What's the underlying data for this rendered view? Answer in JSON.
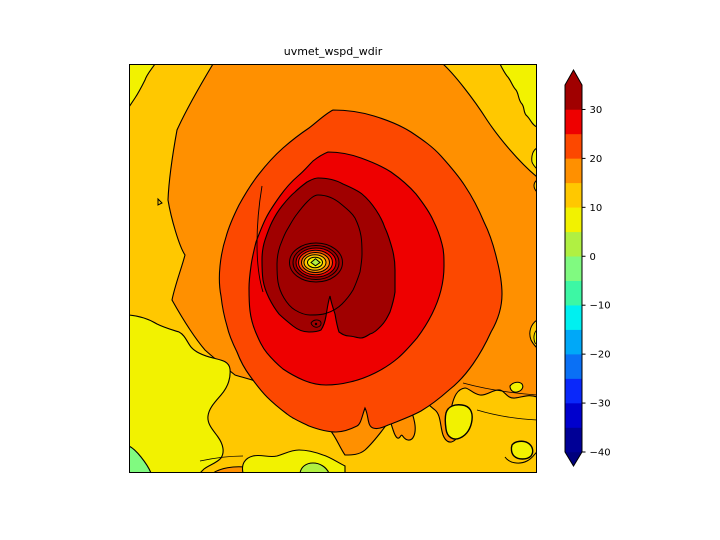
{
  "figure": {
    "title": "uvmet_wspd_wdir",
    "background_color": "#ffffff"
  },
  "chart_data": {
    "type": "filled_contour",
    "title": "uvmet_wspd_wdir",
    "description": "Filled contour map of wind speed (hurricane-like vortex): concentric maxima rings around a calm eye minimum near the center; black contour lines at every level.",
    "contour_interval": 5,
    "levels": [
      -40,
      -35,
      -30,
      -25,
      -20,
      -15,
      -10,
      -5,
      0,
      5,
      10,
      15,
      20,
      25,
      30,
      35
    ],
    "colorbar": {
      "orientation": "vertical",
      "extend": "both",
      "tick_values": [
        30,
        20,
        10,
        0,
        -10,
        -20,
        -30,
        -40
      ],
      "tick_labels": [
        "30",
        "20",
        "10",
        "0",
        "−10",
        "−20",
        "−30",
        "−40"
      ],
      "colors_low_to_high": [
        "#000096",
        "#0000cd",
        "#0a28fa",
        "#0a70f5",
        "#00a8f8",
        "#00f0f0",
        "#3df7a4",
        "#80fa80",
        "#b0f042",
        "#f2f200",
        "#ffc800",
        "#ff9000",
        "#fc4800",
        "#ee0000",
        "#a00000"
      ],
      "under_color": "#00007d",
      "over_color": "#a00000"
    },
    "map_colors": {
      "gold": "#ffc800",
      "orange": "#ff9000",
      "orange_red": "#fc4800",
      "red": "#ee0000",
      "dark_red": "#a00000",
      "yellow": "#f2f200",
      "green_yellow": "#b0f042",
      "light_green": "#80fa80",
      "contour_line": "#000000"
    },
    "visible_levels_legend": {
      "outer_background": "10-15",
      "broad_storm_ring": "15-20",
      "inner_rings_increasing": [
        "20-25",
        "25-30",
        "30-35",
        ">35"
      ],
      "eye_rings_decreasing": [
        "25-30",
        "20-25",
        "15-20",
        "10-15",
        "5-10"
      ],
      "eye_center_minimum": "0-5",
      "low_patches_at_edges": [
        "5-10",
        "0-5",
        "-5-0"
      ]
    }
  }
}
